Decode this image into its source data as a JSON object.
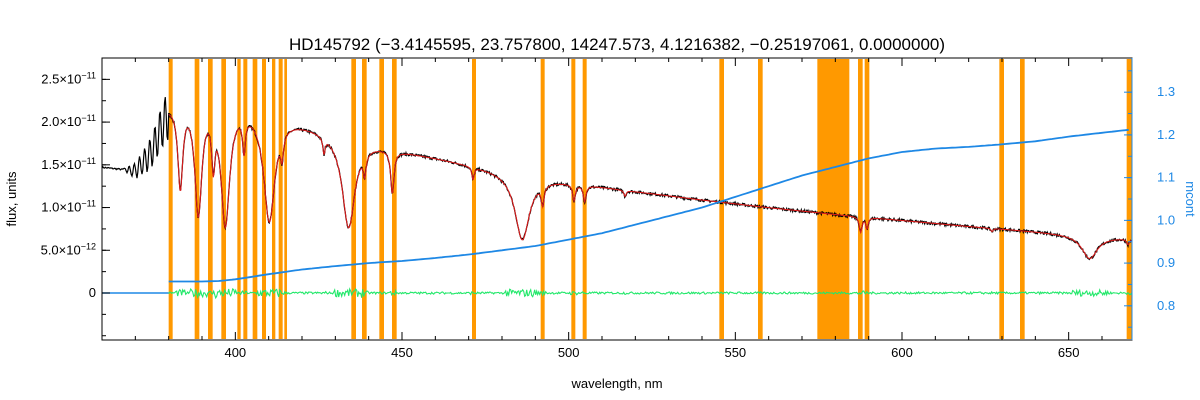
{
  "colors": {
    "observed": "#000000",
    "model": "#d81b1b",
    "mask": "#ff9900",
    "residual": "#22e86a",
    "continuum": "#1e88e5",
    "axis": "#000000"
  },
  "chart_data": {
    "type": "line",
    "title": "HD145792    (−3.4145595, 23.757800, 14247.573, 4.1216382, −0.25197061, 0.0000000)",
    "xlabel": "wavelength, nm",
    "ylabel": "flux, units",
    "y2label": "mcont",
    "xlim": [
      360,
      669
    ],
    "ylim": [
      -5.5e-12,
      2.75e-11
    ],
    "y2lim": [
      0.72,
      1.38
    ],
    "grid": false,
    "x_ticks": [
      400,
      450,
      500,
      550,
      600,
      650
    ],
    "x_tick_labels": [
      "400",
      "450",
      "500",
      "550",
      "600",
      "650"
    ],
    "y_ticks": [
      0,
      5e-12,
      1e-11,
      1.5e-11,
      2e-11,
      2.5e-11
    ],
    "y_tick_mantissa": [
      "0",
      "5.0×10",
      "1.0×10",
      "1.5×10",
      "2.0×10",
      "2.5×10"
    ],
    "y_tick_exponent": [
      "",
      "−12",
      "−11",
      "−11",
      "−11",
      "−11"
    ],
    "y2_ticks": [
      0.8,
      0.9,
      1.0,
      1.1,
      1.2,
      1.3
    ],
    "y2_tick_labels": [
      "0.8",
      "0.9",
      "1.0",
      "1.1",
      "1.2",
      "1.3"
    ],
    "continuum": {
      "x": [
        380,
        385,
        390,
        395,
        400,
        405,
        410,
        420,
        430,
        440,
        450,
        460,
        470,
        480,
        490,
        500,
        510,
        520,
        530,
        540,
        550,
        560,
        570,
        580,
        590,
        600,
        610,
        620,
        630,
        640,
        650,
        660,
        668
      ],
      "y": [
        0.857,
        0.857,
        0.857,
        0.858,
        0.862,
        0.868,
        0.874,
        0.885,
        0.893,
        0.9,
        0.905,
        0.912,
        0.92,
        0.93,
        0.94,
        0.955,
        0.97,
        0.99,
        1.01,
        1.03,
        1.055,
        1.08,
        1.105,
        1.125,
        1.145,
        1.16,
        1.168,
        1.172,
        1.178,
        1.185,
        1.196,
        1.205,
        1.212
      ]
    },
    "residual_level": 0,
    "continuum_envelope": {
      "x": [
        380,
        385,
        390,
        395,
        400,
        410,
        420,
        430,
        440,
        450,
        460,
        470,
        480,
        490,
        500,
        520,
        540,
        560,
        580,
        600,
        620,
        640,
        660,
        669
      ],
      "y": [
        2.2e-11,
        2.3e-11,
        2.32e-11,
        2.3e-11,
        2.25e-11,
        2.12e-11,
        2e-11,
        1.88e-11,
        1.77e-11,
        1.67e-11,
        1.59e-11,
        1.51e-11,
        1.43e-11,
        1.36e-11,
        1.3e-11,
        1.19e-11,
        1.09e-11,
        1e-11,
        9.2e-12,
        8.5e-12,
        7.8e-12,
        7.2e-12,
        6.6e-12,
        6.4e-12
      ]
    },
    "blue_segment": {
      "x": [
        360,
        365,
        370,
        374,
        376,
        378,
        380
      ],
      "y": [
        1.47e-11,
        1.45e-11,
        1.43e-11,
        1.6e-11,
        1.75e-11,
        1.95e-11,
        2.1e-11
      ]
    },
    "absorption_lines": [
      {
        "center": 383.5,
        "depth": 0.45,
        "width": 0.9
      },
      {
        "center": 388.9,
        "depth": 0.6,
        "width": 1.3
      },
      {
        "center": 397.0,
        "depth": 0.65,
        "width": 1.6
      },
      {
        "center": 393.4,
        "depth": 0.3,
        "width": 0.6
      },
      {
        "center": 402.6,
        "depth": 0.2,
        "width": 0.5
      },
      {
        "center": 410.2,
        "depth": 0.6,
        "width": 2.0
      },
      {
        "center": 414.0,
        "depth": 0.15,
        "width": 0.5
      },
      {
        "center": 426.6,
        "depth": 0.1,
        "width": 0.4
      },
      {
        "center": 434.0,
        "depth": 0.58,
        "width": 2.3
      },
      {
        "center": 438.8,
        "depth": 0.15,
        "width": 0.5
      },
      {
        "center": 447.1,
        "depth": 0.3,
        "width": 0.6
      },
      {
        "center": 471.3,
        "depth": 0.1,
        "width": 0.4
      },
      {
        "center": 486.1,
        "depth": 0.55,
        "width": 2.6
      },
      {
        "center": 492.2,
        "depth": 0.18,
        "width": 0.5
      },
      {
        "center": 501.6,
        "depth": 0.15,
        "width": 0.5
      },
      {
        "center": 504.8,
        "depth": 0.15,
        "width": 0.5
      },
      {
        "center": 516.9,
        "depth": 0.06,
        "width": 0.4
      },
      {
        "center": 587.6,
        "depth": 0.2,
        "width": 0.5
      },
      {
        "center": 589.5,
        "depth": 0.15,
        "width": 0.4
      },
      {
        "center": 627.0,
        "depth": 0.05,
        "width": 0.4
      },
      {
        "center": 656.3,
        "depth": 0.4,
        "width": 2.8
      },
      {
        "center": 667.8,
        "depth": 0.1,
        "width": 0.5
      }
    ],
    "mask_bands": [
      [
        380.0,
        381.2
      ],
      [
        387.8,
        389.2
      ],
      [
        391.8,
        393.2
      ],
      [
        395.8,
        397.2
      ],
      [
        400.6,
        401.6
      ],
      [
        402.4,
        403.6
      ],
      [
        405.2,
        406.6
      ],
      [
        408.0,
        409.2
      ],
      [
        411.0,
        412.0
      ],
      [
        413.0,
        414.2
      ],
      [
        414.7,
        415.5
      ],
      [
        434.8,
        436.2
      ],
      [
        438.0,
        439.4
      ],
      [
        443.2,
        444.6
      ],
      [
        447.0,
        448.4
      ],
      [
        471.0,
        472.2
      ],
      [
        491.6,
        492.8
      ],
      [
        500.8,
        502.0
      ],
      [
        504.2,
        505.4
      ],
      [
        545.2,
        546.6
      ],
      [
        556.8,
        558.2
      ],
      [
        574.6,
        584.2
      ],
      [
        586.8,
        588.2
      ],
      [
        588.8,
        590.2
      ],
      [
        629.2,
        630.6
      ],
      [
        635.4,
        636.8
      ],
      [
        667.4,
        669.0
      ]
    ]
  }
}
